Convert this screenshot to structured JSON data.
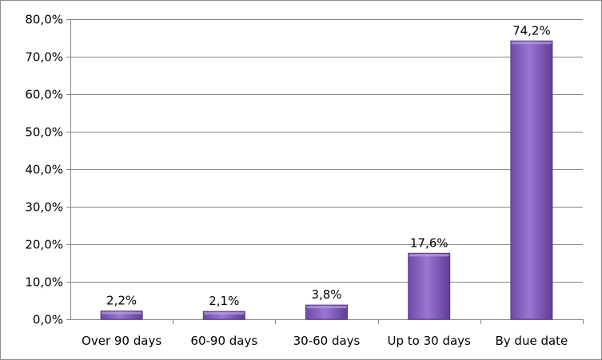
{
  "chart_data": {
    "type": "bar",
    "categories": [
      "Over 90 days",
      "60-90 days",
      "30-60 days",
      "Up to 30 days",
      "By due date"
    ],
    "values": [
      2.2,
      2.1,
      3.8,
      17.6,
      74.2
    ],
    "data_labels": [
      "2,2%",
      "2,1%",
      "3,8%",
      "17,6%",
      "74,2%"
    ],
    "y_ticks": [
      0,
      10,
      20,
      30,
      40,
      50,
      60,
      70,
      80
    ],
    "y_tick_labels": [
      "0,0%",
      "10,0%",
      "20,0%",
      "30,0%",
      "40,0%",
      "50,0%",
      "60,0%",
      "70,0%",
      "80,0%"
    ],
    "ylim": [
      0,
      80
    ],
    "grid": true,
    "legend": "none",
    "bar_color": "#8a63c4",
    "bar_color_dark": "#5a3a8c"
  }
}
